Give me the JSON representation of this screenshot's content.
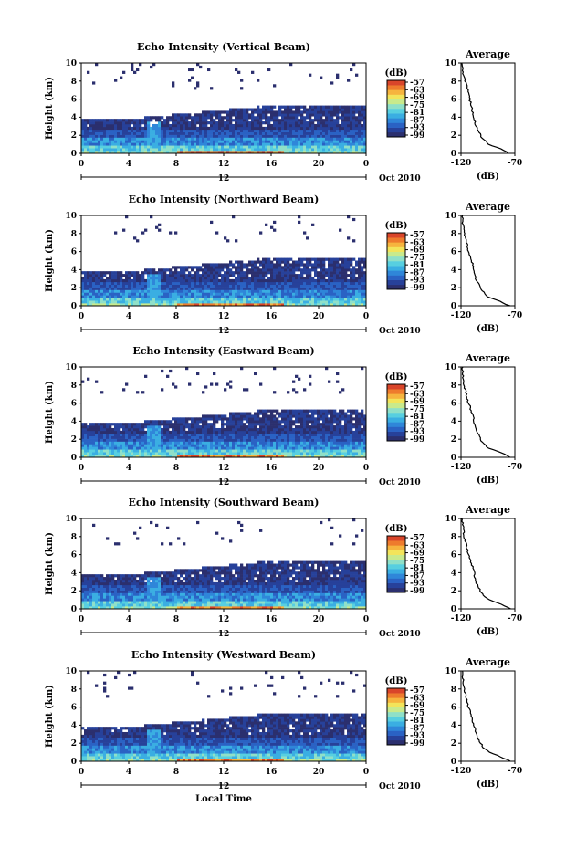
{
  "figure": {
    "xlabel_bottom": "Local Time",
    "date_label": "Oct 2010",
    "colors": [
      "#2b2f6e",
      "#27419a",
      "#2a62c4",
      "#2f86d9",
      "#3aaee2",
      "#57cfe0",
      "#8fe0c8",
      "#c9ea8c",
      "#f3e45a",
      "#f6b43e",
      "#ee7b2d",
      "#d9452a"
    ]
  },
  "panels": [
    {
      "title": "Echo Intensity (Vertical Beam)"
    },
    {
      "title": "Echo Intensity (Northward Beam)"
    },
    {
      "title": "Echo Intensity (Eastward Beam)"
    },
    {
      "title": "Echo Intensity (Southward Beam)"
    },
    {
      "title": "Echo Intensity (Westward Beam)"
    }
  ],
  "chart_data": [
    {
      "type": "heatmap",
      "panels": [
        "Echo Intensity (Vertical Beam)",
        "Echo Intensity (Northward Beam)",
        "Echo Intensity (Eastward Beam)",
        "Echo Intensity (Southward Beam)",
        "Echo Intensity (Westward Beam)"
      ],
      "ylabel": "Height (km)",
      "xlabel": "Local Time",
      "date": "Oct 2010",
      "xlim": [
        0,
        24
      ],
      "x_ticks": [
        "0",
        "4",
        "8",
        "12",
        "16",
        "20",
        "0"
      ],
      "x_day_tick": "12",
      "ylim": [
        0,
        10
      ],
      "y_ticks": [
        "0",
        "2",
        "4",
        "6",
        "8",
        "10"
      ],
      "colorbar_label": "(dB)",
      "colorbar_ticks": [
        "-57",
        "-63",
        "-69",
        "-75",
        "-81",
        "-87",
        "-93",
        "-99"
      ],
      "echo_layer_top_km": [
        3.5,
        3.5,
        4.0,
        4.5,
        5.0,
        5.0,
        5.0
      ],
      "echo_layer_top_hours": [
        0,
        4,
        8,
        12,
        16,
        20,
        24
      ],
      "strongest_echo_hours": [
        8,
        17
      ],
      "strongest_echo_max_height_km": 0.6
    },
    {
      "type": "line",
      "title": "Average",
      "xlabel": "(dB)",
      "ylabel": "",
      "xlim": [
        -120,
        -70
      ],
      "ylim": [
        0,
        10
      ],
      "x_ticks": [
        "-120",
        "-70"
      ],
      "y_ticks": [
        "0",
        "2",
        "4",
        "6",
        "8",
        "10"
      ],
      "height_km": [
        0,
        0.5,
        1,
        1.5,
        2,
        3,
        4,
        5,
        6,
        7,
        8,
        9,
        10
      ],
      "series": [
        {
          "values": [
            -76,
            -83,
            -94,
            -99,
            -102,
            -106,
            -108,
            -110,
            -112,
            -114,
            -116,
            -118,
            -119
          ]
        },
        {
          "values": [
            -75,
            -84,
            -95,
            -99,
            -102,
            -106,
            -108,
            -110,
            -113,
            -115,
            -117,
            -118,
            -119
          ]
        },
        {
          "values": [
            -74,
            -83,
            -94,
            -99,
            -102,
            -106,
            -108,
            -110,
            -113,
            -115,
            -117,
            -118,
            -119
          ]
        },
        {
          "values": [
            -74,
            -83,
            -94,
            -99,
            -102,
            -106,
            -108,
            -110,
            -113,
            -115,
            -117,
            -118,
            -119
          ]
        },
        {
          "values": [
            -74,
            -83,
            -94,
            -99,
            -102,
            -106,
            -108,
            -110,
            -113,
            -115,
            -117,
            -118,
            -119
          ]
        }
      ]
    }
  ]
}
